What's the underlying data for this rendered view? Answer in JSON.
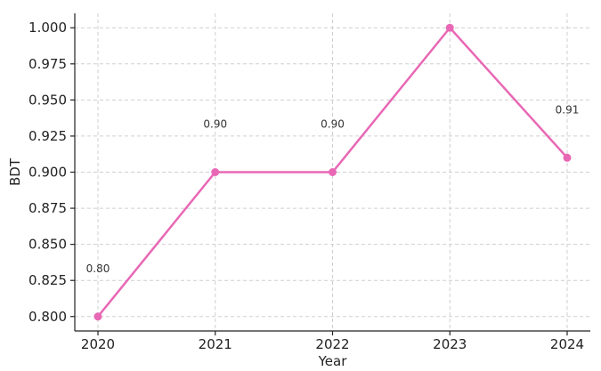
{
  "chart_data": {
    "type": "line",
    "title": "",
    "xlabel": "Year",
    "ylabel": "BDT",
    "categories": [
      "2020",
      "2021",
      "2022",
      "2023",
      "2024"
    ],
    "series": [
      {
        "values": [
          0.8,
          0.9,
          0.9,
          1.0,
          0.91
        ],
        "color": "#e868b5"
      }
    ],
    "data_labels": [
      "0.80",
      "0.90",
      "0.90",
      "",
      "0.91"
    ],
    "yticks": [
      "0.800",
      "0.825",
      "0.850",
      "0.875",
      "0.900",
      "0.925",
      "0.950",
      "0.975",
      "1.000"
    ],
    "ylim": [
      0.79,
      1.01
    ],
    "grid": true,
    "legend": "none"
  }
}
